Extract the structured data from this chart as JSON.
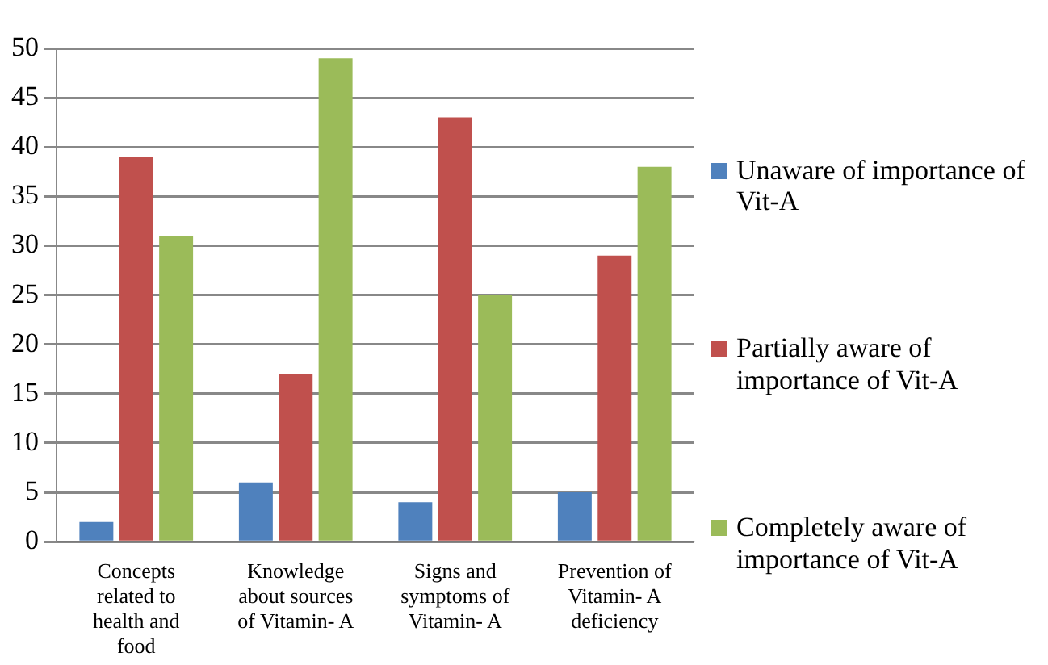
{
  "chart_data": {
    "type": "bar",
    "categories": [
      "Concepts related to health and food",
      "Knowledge about sources of Vitamin- A",
      "Signs and symptoms of Vitamin- A",
      "Prevention of Vitamin- A deficiency"
    ],
    "series": [
      {
        "name": "Unaware of importance of Vit-A",
        "color": "#4f81bd",
        "values": [
          2,
          6,
          4,
          5
        ]
      },
      {
        "name": "Partially aware of importance of Vit-A",
        "color": "#c0504d",
        "values": [
          39,
          17,
          43,
          29
        ]
      },
      {
        "name": "Completely aware of importance of Vit-A",
        "color": "#9bbb59",
        "values": [
          31,
          49,
          25,
          38
        ]
      }
    ],
    "ylim": [
      0,
      50
    ],
    "yticks": [
      0,
      5,
      10,
      15,
      20,
      25,
      30,
      35,
      40,
      45,
      50
    ],
    "grid": "y",
    "legend": "right"
  }
}
